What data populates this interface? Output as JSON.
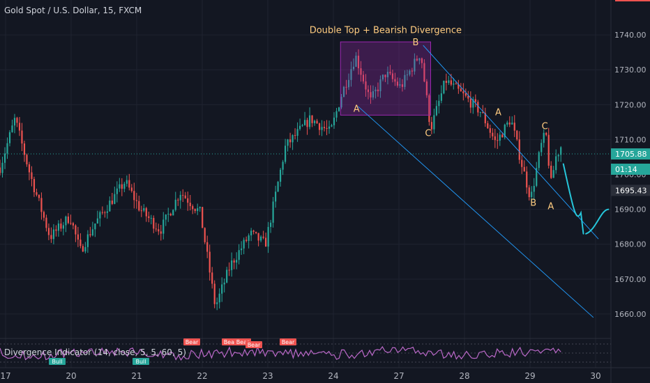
{
  "header": {
    "symbol_title": "Gold Spot / U.S. Dollar, 15, FXCM"
  },
  "indicator": {
    "label": "Divergence Indicator (14, close, 5, 5, 60, 5)",
    "tags": [
      "Bear",
      "Bear",
      "Bear",
      "Bear",
      "Bear",
      "Bull",
      "Bull"
    ]
  },
  "colors": {
    "background": "#131722",
    "up": "#26a69a",
    "down": "#ef5350",
    "channel": "#2196f3",
    "projection": "#26c6da",
    "box": "#9c27b0",
    "label": "#ffcc80",
    "last_price": "#26a69a",
    "rsi_line": "#ba68c8"
  },
  "chart_data": {
    "type": "candlestick",
    "title": "Gold Spot / U.S. Dollar, 15, FXCM",
    "annotation_title": "Double Top + Bearish Divergence",
    "y_ticks": [
      1660,
      1670,
      1680,
      1690,
      1700,
      1710,
      1720,
      1730,
      1740
    ],
    "y_tick_labels": [
      "1660.00",
      "1670.00",
      "1680.00",
      "1690.00",
      "1700.00",
      "1710.00",
      "1720.00",
      "1730.00",
      "1740.00"
    ],
    "ylim": [
      1653,
      1750
    ],
    "x_tick_labels": [
      "17",
      "20",
      "21",
      "22",
      "23",
      "24",
      "27",
      "28",
      "29",
      "30"
    ],
    "price_labels": [
      {
        "value": 1705.88,
        "text": "1705.88",
        "style": "last"
      },
      {
        "value": 1701.5,
        "text": "01:14",
        "style": "countdown"
      },
      {
        "value": 1695.43,
        "text": "1695.43",
        "style": "dark"
      }
    ],
    "approx_price_path": [
      [
        0,
        1702
      ],
      [
        0.3,
        1716
      ],
      [
        0.6,
        1700
      ],
      [
        1.0,
        1682
      ],
      [
        1.4,
        1688
      ],
      [
        1.6,
        1678
      ],
      [
        1.9,
        1686
      ],
      [
        2.2,
        1692
      ],
      [
        2.5,
        1698
      ],
      [
        2.8,
        1690
      ],
      [
        3.2,
        1684
      ],
      [
        3.6,
        1695
      ],
      [
        4.0,
        1689
      ],
      [
        4.3,
        1662
      ],
      [
        4.6,
        1674
      ],
      [
        5.0,
        1683
      ],
      [
        5.3,
        1680
      ],
      [
        5.7,
        1708
      ],
      [
        6.2,
        1716
      ],
      [
        6.6,
        1712
      ],
      [
        6.8,
        1722
      ],
      [
        7.1,
        1734
      ],
      [
        7.4,
        1721
      ],
      [
        7.7,
        1729
      ],
      [
        8.0,
        1725
      ],
      [
        8.4,
        1735
      ],
      [
        8.6,
        1713
      ],
      [
        8.9,
        1727
      ],
      [
        9.3,
        1722
      ],
      [
        9.6,
        1718
      ],
      [
        9.9,
        1709
      ],
      [
        10.2,
        1716
      ],
      [
        10.4,
        1704
      ],
      [
        10.6,
        1693
      ],
      [
        10.8,
        1708
      ],
      [
        10.9,
        1712
      ],
      [
        11.0,
        1697
      ],
      [
        11.1,
        1705
      ],
      [
        11.2,
        1708
      ]
    ],
    "labels": [
      {
        "text": "A",
        "x": 7.12,
        "y": 1718
      },
      {
        "text": "B",
        "x": 8.3,
        "y": 1737
      },
      {
        "text": "C",
        "x": 8.55,
        "y": 1711
      },
      {
        "text": "A",
        "x": 9.95,
        "y": 1717
      },
      {
        "text": "C",
        "x": 10.88,
        "y": 1713
      },
      {
        "text": "B",
        "x": 10.65,
        "y": 1691
      },
      {
        "text": "A",
        "x": 11.0,
        "y": 1690
      }
    ]
  }
}
